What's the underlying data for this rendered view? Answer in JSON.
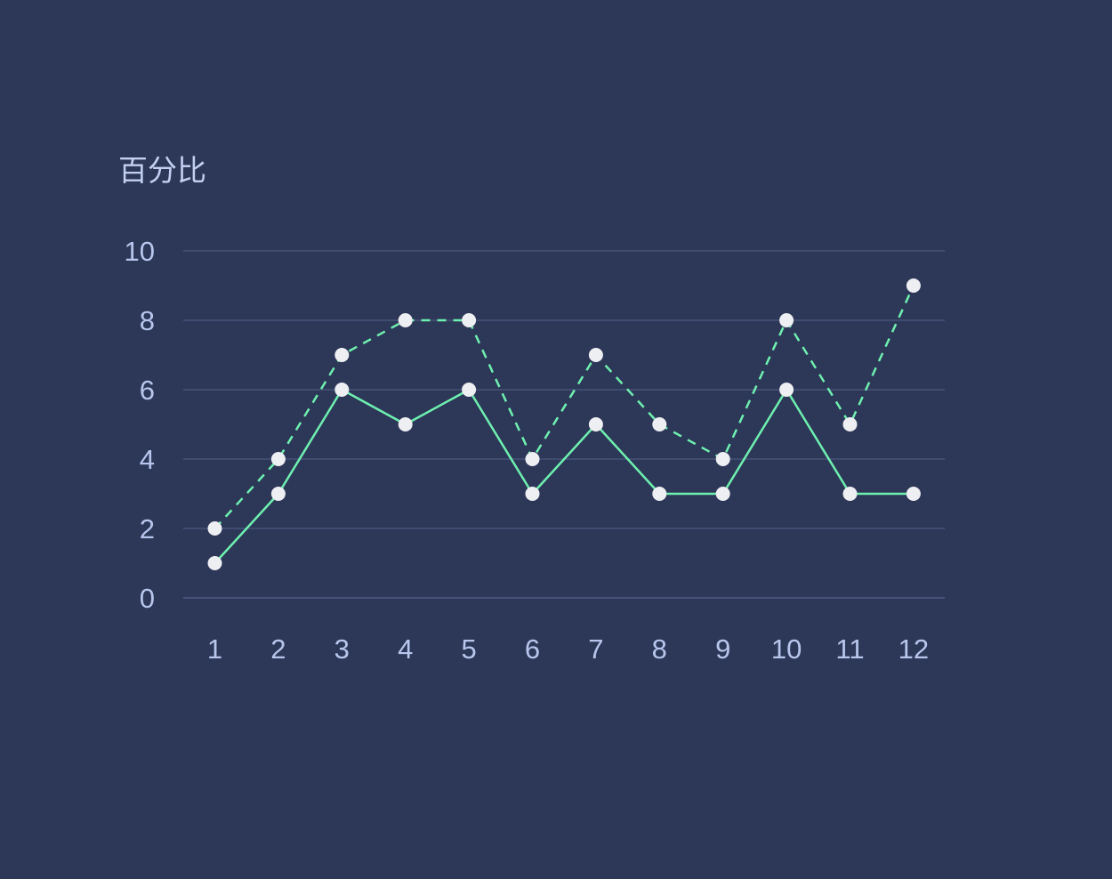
{
  "colors": {
    "background": "#2d3757",
    "line": "#6ef0b0",
    "marker": "#eeeff3",
    "grid": "#46527a",
    "text": "#b8c6ee"
  },
  "chart_data": {
    "type": "line",
    "ylabel": "百分比",
    "xlabel": "",
    "title": "",
    "x": [
      "1",
      "2",
      "3",
      "4",
      "5",
      "6",
      "7",
      "8",
      "9",
      "10",
      "11",
      "12"
    ],
    "y_ticks": [
      "0",
      "2",
      "4",
      "6",
      "8",
      "10"
    ],
    "ylim": [
      0,
      10
    ],
    "grid": true,
    "legend": "none",
    "series": [
      {
        "style": "dashed",
        "values": [
          2,
          4,
          7,
          8,
          8,
          4,
          7,
          5,
          4,
          8,
          5,
          9
        ]
      },
      {
        "style": "solid",
        "values": [
          1,
          3,
          6,
          5,
          6,
          3,
          5,
          3,
          3,
          6,
          3,
          3
        ]
      }
    ]
  }
}
